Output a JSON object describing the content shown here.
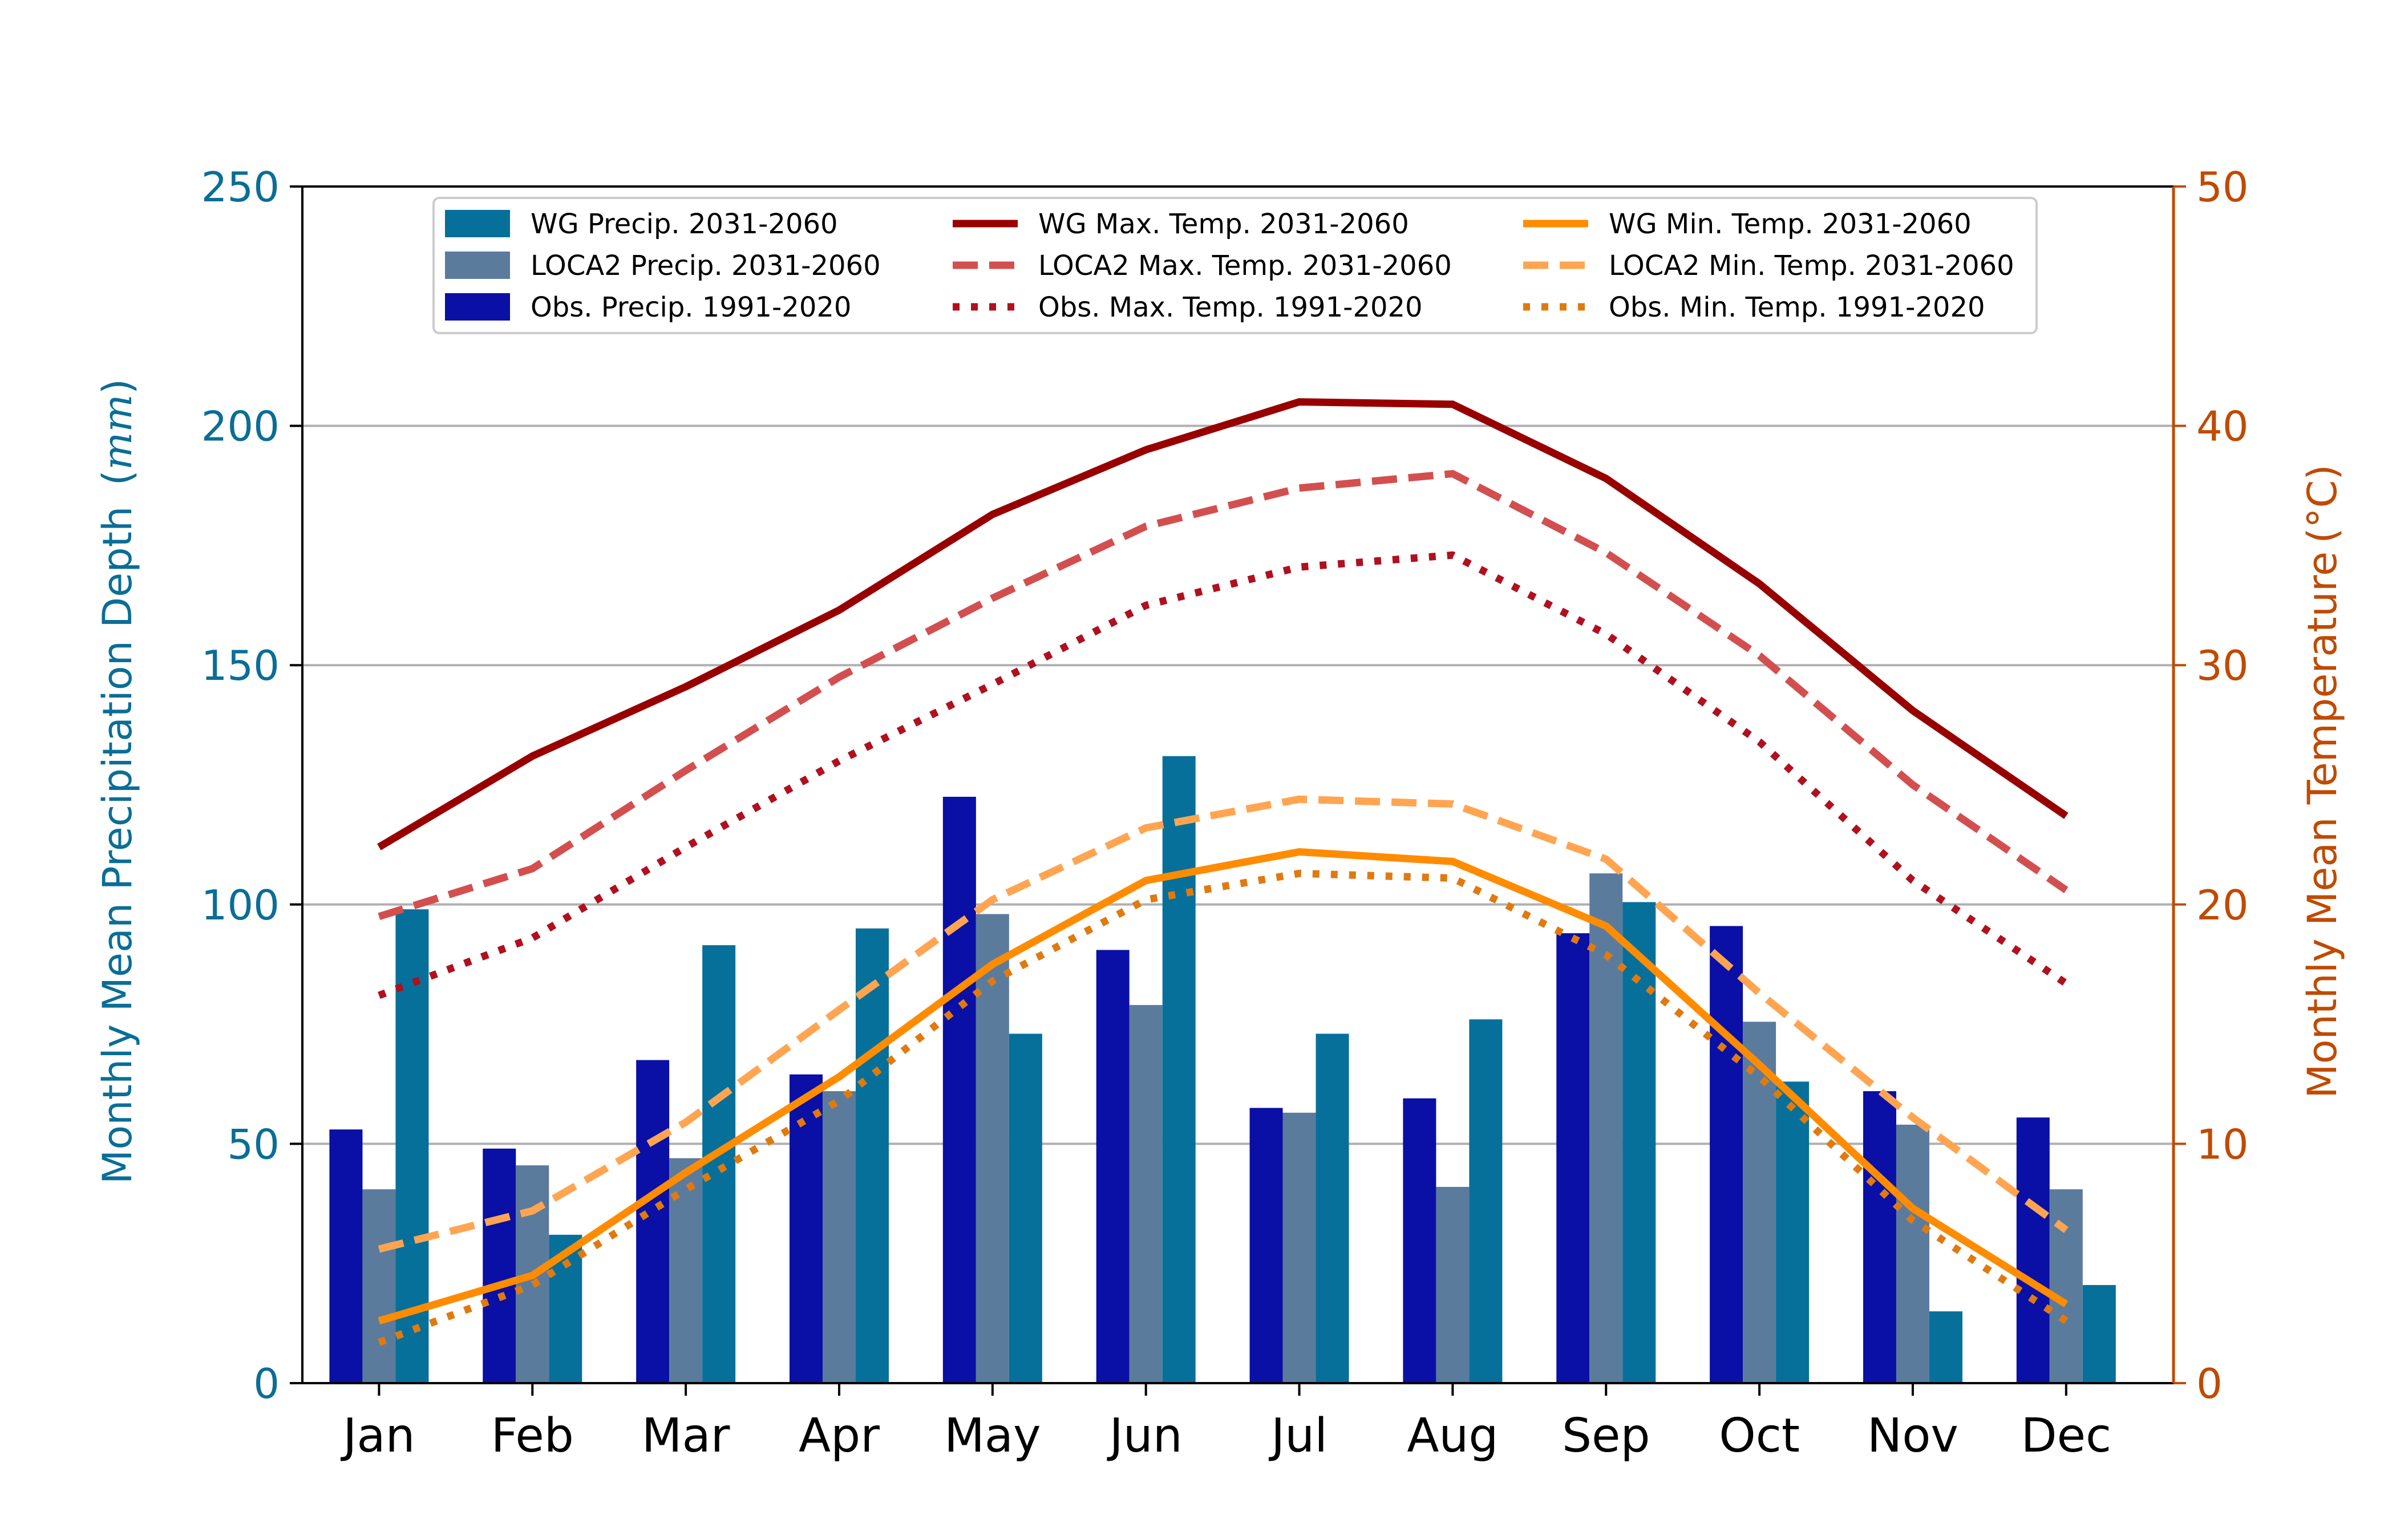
{
  "chart_data": {
    "type": "bar",
    "categories": [
      "Jan",
      "Feb",
      "Mar",
      "Apr",
      "May",
      "Jun",
      "Jul",
      "Aug",
      "Sep",
      "Oct",
      "Nov",
      "Dec"
    ],
    "xlabel": "",
    "ylabel_left": "Monthly Mean Precipitation Depth",
    "ylabel_left_unit": "mm",
    "ylabel_right": "Monthly Mean Temperature",
    "ylabel_right_unit": "(°C)",
    "ylim_left": [
      0,
      250
    ],
    "ylim_right": [
      0,
      50
    ],
    "yticks_left": [
      0,
      50,
      100,
      150,
      200,
      250
    ],
    "yticks_right": [
      0,
      10,
      20,
      30,
      40,
      50
    ],
    "grid": "horizontal",
    "legend_position": "top-center",
    "bar_series": [
      {
        "name": "Obs. Precip. 1991-2020",
        "color": "#0a0fa5",
        "values": [
          53,
          49,
          67.5,
          64.5,
          122.5,
          90.5,
          57.5,
          59.5,
          94,
          95.5,
          61,
          55.5
        ]
      },
      {
        "name": "LOCA2 Precip. 2031-2060",
        "color": "#5b7b9d",
        "values": [
          40.5,
          45.5,
          47,
          61,
          98,
          79,
          56.5,
          41,
          106.5,
          75.5,
          54,
          40.5
        ]
      },
      {
        "name": "WG Precip. 2031-2060",
        "color": "#06709a",
        "values": [
          99,
          31,
          91.5,
          95,
          73,
          131,
          73,
          76,
          100.5,
          63,
          15,
          20.5
        ]
      }
    ],
    "line_series": [
      {
        "name": "WG Max. Temp. 2031-2060",
        "color": "#980000",
        "style": "solid",
        "values": [
          22.4,
          26.2,
          29.1,
          32.3,
          36.3,
          39,
          41,
          40.9,
          37.8,
          33.4,
          28.1,
          23.7
        ]
      },
      {
        "name": "LOCA2 Max. Temp. 2031-2060",
        "color": "#d34f4f",
        "style": "dashed",
        "values": [
          19.5,
          21.5,
          25.6,
          29.5,
          32.8,
          35.8,
          37.4,
          38,
          34.7,
          30.4,
          25,
          20.6
        ]
      },
      {
        "name": "Obs. Max. Temp. 1991-2020",
        "color": "#b0101f",
        "style": "dotted",
        "values": [
          16.2,
          18.6,
          22.4,
          26,
          29.2,
          32.5,
          34.1,
          34.6,
          31.3,
          26.8,
          21,
          16.7
        ]
      },
      {
        "name": "WG Min. Temp. 2031-2060",
        "color": "#ff8c00",
        "style": "solid",
        "values": [
          2.6,
          4.5,
          8.8,
          12.8,
          17.5,
          21,
          22.2,
          21.8,
          19.1,
          13.3,
          7.3,
          3.3
        ]
      },
      {
        "name": "LOCA2 Min. Temp. 2031-2060",
        "color": "#ffa552",
        "style": "dashed",
        "values": [
          5.6,
          7.2,
          10.9,
          15.6,
          20.2,
          23.2,
          24.4,
          24.2,
          21.9,
          16.3,
          11.1,
          6.4
        ]
      },
      {
        "name": "Obs. Min. Temp. 1991-2020",
        "color": "#e07a10",
        "style": "dotted",
        "values": [
          1.7,
          4.1,
          8.1,
          11.8,
          16.8,
          20.2,
          21.3,
          21.1,
          17.9,
          12.8,
          6.8,
          2.6
        ]
      }
    ],
    "legend_order": [
      "WG Precip. 2031-2060",
      "WG Max. Temp. 2031-2060",
      "WG Min. Temp. 2031-2060",
      "LOCA2 Precip. 2031-2060",
      "LOCA2 Max. Temp. 2031-2060",
      "LOCA2 Min. Temp. 2031-2060",
      "Obs. Precip. 1991-2020",
      "Obs. Max. Temp. 1991-2020",
      "Obs. Min. Temp. 1991-2020"
    ],
    "colors": {
      "left_axis": "#0a6e96",
      "right_axis": "#c04a00",
      "grid": "#b0b0b0"
    }
  }
}
